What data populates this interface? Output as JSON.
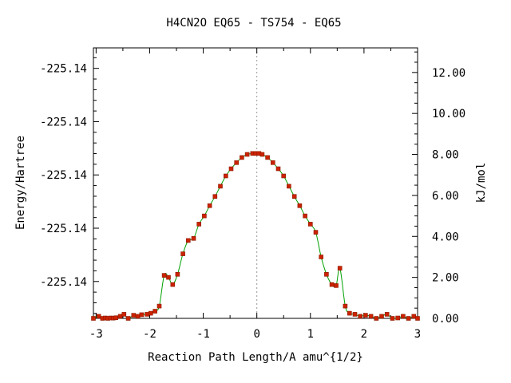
{
  "chart_data": {
    "type": "line",
    "title": "H4CN2O   EQ65 - TS754 - EQ65",
    "xlabel": "Reaction Path Length/A amu^{1/2}",
    "ylabel": "Energy/Hartree",
    "y2label": "kJ/mol",
    "xlim": [
      -3.05,
      3.0
    ],
    "ylim_kjmol": [
      0.0,
      13.2
    ],
    "x_ticks": [
      "-3",
      "-2",
      "-1",
      "0",
      "1",
      "2",
      "3"
    ],
    "x_tick_values": [
      -3,
      -2,
      -1,
      0,
      1,
      2,
      3
    ],
    "y_left_ticks": [
      "-225.14",
      "-225.14",
      "-225.14",
      "-225.14",
      "-225.14"
    ],
    "y_left_tick_values_kjmol": [
      12.2,
      9.6,
      7.0,
      4.4,
      1.8
    ],
    "y_right_ticks": [
      "0.00",
      "2.00",
      "4.00",
      "6.00",
      "8.00",
      "10.00",
      "12.00"
    ],
    "y_right_tick_values": [
      0,
      2,
      4,
      6,
      8,
      10,
      12
    ],
    "vertical_marker_x": 0,
    "colors": {
      "line": "#00a000",
      "marker": "#cc2200",
      "marker_edge": "#8b1a00"
    },
    "series": [
      {
        "x": [
          -3.05,
          -2.95,
          -2.88,
          -2.83,
          -2.78,
          -2.73,
          -2.68,
          -2.63,
          -2.55,
          -2.48,
          -2.4,
          -2.3,
          -2.22,
          -2.15,
          -2.05,
          -1.98,
          -1.9,
          -1.82,
          -1.73,
          -1.65,
          -1.57,
          -1.48,
          -1.38,
          -1.28,
          -1.18,
          -1.08,
          -0.98,
          -0.88,
          -0.78,
          -0.68,
          -0.58,
          -0.48,
          -0.38,
          -0.28,
          -0.18,
          -0.08,
          -0.02,
          0.04,
          0.1,
          0.2,
          0.3,
          0.4,
          0.5,
          0.6,
          0.7,
          0.8,
          0.9,
          1.0,
          1.1,
          1.2,
          1.3,
          1.4,
          1.48,
          1.55,
          1.65,
          1.73,
          1.83,
          1.93,
          2.03,
          2.13,
          2.23,
          2.33,
          2.43,
          2.53,
          2.63,
          2.73,
          2.83,
          2.93,
          3.0
        ],
        "y": [
          0.0,
          0.1,
          0.0,
          0.02,
          0.0,
          0.02,
          0.01,
          0.03,
          0.1,
          0.2,
          0.0,
          0.15,
          0.1,
          0.18,
          0.2,
          0.25,
          0.35,
          0.6,
          2.1,
          2.0,
          1.65,
          2.15,
          3.15,
          3.8,
          3.9,
          4.6,
          5.0,
          5.5,
          5.95,
          6.45,
          6.95,
          7.3,
          7.6,
          7.85,
          8.0,
          8.05,
          8.05,
          8.05,
          8.0,
          7.85,
          7.6,
          7.3,
          6.95,
          6.45,
          5.95,
          5.5,
          5.0,
          4.6,
          4.2,
          3.0,
          2.15,
          1.65,
          1.6,
          2.45,
          0.6,
          0.25,
          0.2,
          0.1,
          0.15,
          0.1,
          0.0,
          0.1,
          0.2,
          0.0,
          0.02,
          0.1,
          0.0,
          0.1,
          0.0
        ]
      }
    ]
  }
}
